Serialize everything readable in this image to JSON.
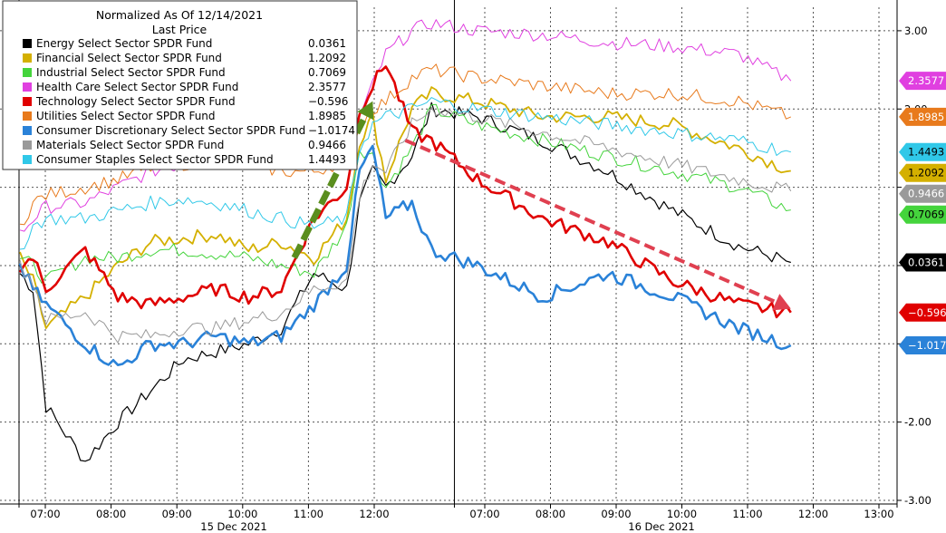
{
  "chart_data": {
    "type": "line",
    "title": "Normalized As Of 12/14/2021",
    "legend_header": "Last Price",
    "legend_placement": "top-left",
    "grid": true,
    "ylim": [
      -3.0,
      3.3
    ],
    "y_ticks": [
      {
        "value": 3.0,
        "label": "3.00"
      },
      {
        "value": 2.0,
        "label": "2.00"
      },
      {
        "value": 1.0,
        "label": ""
      },
      {
        "value": 0.0,
        "label": ""
      },
      {
        "value": -1.0,
        "label": ""
      },
      {
        "value": -2.0,
        "label": "-2.00"
      },
      {
        "value": -3.0,
        "label": "-3.00"
      }
    ],
    "x_ticks": [
      "07:00",
      "08:00",
      "09:00",
      "10:00",
      "11:00",
      "12:00",
      "07:00",
      "08:00",
      "09:00",
      "10:00",
      "11:00",
      "12:00",
      "13:00"
    ],
    "day_labels": [
      "15 Dec 2021",
      "16 Dec 2021"
    ],
    "x_points": [
      0,
      0.2,
      0.4,
      1,
      1.5,
      2,
      2.5,
      3,
      3.5,
      4,
      4.5,
      5,
      5.2,
      5.4,
      5.6,
      6.0,
      6.3,
      7,
      8,
      9,
      10,
      11,
      11.8
    ],
    "series": [
      {
        "name": "Energy Select Sector SPDR Fund",
        "last": "0.0361",
        "color": "#000000",
        "stroke": 1.2,
        "values": [
          -0.1,
          -0.3,
          -1.8,
          -2.5,
          -2.0,
          -1.6,
          -1.2,
          -1.1,
          -1.0,
          -0.8,
          -0.1,
          -0.3,
          0.8,
          1.2,
          1.0,
          1.4,
          2.0,
          1.9,
          1.6,
          1.2,
          0.7,
          0.25,
          0.04
        ]
      },
      {
        "name": "Financial Select Sector SPDR Fund",
        "last": "1.2092",
        "color": "#d4b000",
        "stroke": 1.8,
        "values": [
          0.1,
          -0.2,
          -0.8,
          -0.4,
          0.0,
          0.3,
          0.35,
          0.4,
          0.2,
          0.3,
          0.1,
          0.6,
          1.6,
          1.9,
          1.1,
          2.0,
          2.2,
          2.1,
          1.9,
          1.9,
          1.8,
          1.5,
          1.21
        ]
      },
      {
        "name": "Industrial Select Sector SPDR Fund",
        "last": "0.7069",
        "color": "#44d43c",
        "stroke": 1.0,
        "values": [
          0.1,
          0.0,
          -0.2,
          0.1,
          0.1,
          0.2,
          0.2,
          0.15,
          0.1,
          0.0,
          -0.1,
          0.5,
          1.5,
          1.4,
          1.0,
          1.5,
          2.0,
          1.8,
          1.6,
          1.4,
          1.2,
          1.0,
          0.71
        ]
      },
      {
        "name": "Health Care Select Sector SPDR Fund",
        "last": "2.3577",
        "color": "#e040e0",
        "stroke": 1.0,
        "values": [
          0.4,
          0.6,
          0.75,
          0.8,
          1.0,
          1.2,
          1.3,
          1.4,
          1.5,
          1.4,
          1.3,
          1.4,
          1.9,
          2.3,
          2.7,
          3.0,
          3.1,
          3.0,
          2.95,
          2.85,
          2.8,
          2.7,
          2.36
        ]
      },
      {
        "name": "Technology Select Sector SPDR Fund",
        "last": "−0.596",
        "color": "#e00000",
        "stroke": 2.6,
        "values": [
          0.0,
          0.1,
          -0.3,
          0.2,
          -0.4,
          -0.5,
          -0.4,
          -0.3,
          -0.4,
          -0.3,
          0.6,
          1.0,
          2.0,
          2.3,
          2.6,
          1.7,
          1.6,
          1.1,
          0.6,
          0.3,
          -0.2,
          -0.5,
          -0.6
        ]
      },
      {
        "name": "Utilities Select Sector SPDR Fund",
        "last": "1.8985",
        "color": "#e87a1c",
        "stroke": 1.0,
        "values": [
          0.5,
          0.8,
          0.9,
          1.0,
          1.1,
          1.25,
          1.3,
          1.35,
          1.3,
          1.2,
          1.2,
          1.35,
          1.8,
          2.0,
          2.1,
          2.4,
          2.5,
          2.4,
          2.3,
          2.2,
          2.2,
          2.1,
          1.9
        ]
      },
      {
        "name": "Consumer Discretionary Select Sector SPDR Fund",
        "last": "−1.0174",
        "color": "#2a82d8",
        "stroke": 2.6,
        "values": [
          0.0,
          -0.3,
          -0.5,
          -1.0,
          -1.3,
          -1.0,
          -1.0,
          -0.9,
          -1.0,
          -0.9,
          -0.5,
          0.0,
          1.2,
          1.5,
          0.6,
          0.8,
          0.2,
          0.0,
          -0.4,
          -0.1,
          -0.4,
          -0.8,
          -1.02
        ]
      },
      {
        "name": "Materials Select Sector SPDR Fund",
        "last": "0.9466",
        "color": "#9a9a9a",
        "stroke": 1.0,
        "values": [
          0.0,
          -0.2,
          -0.7,
          -0.6,
          -0.9,
          -0.9,
          -0.8,
          -0.8,
          -0.7,
          -0.6,
          -0.3,
          -0.2,
          0.9,
          1.3,
          1.2,
          1.8,
          2.0,
          1.9,
          1.7,
          1.5,
          1.3,
          1.1,
          0.95
        ]
      },
      {
        "name": "Consumer Staples Select Sector SPDR Fund",
        "last": "1.4493",
        "color": "#30c8e8",
        "stroke": 1.0,
        "values": [
          0.2,
          0.5,
          0.6,
          0.6,
          0.7,
          0.8,
          0.85,
          0.8,
          0.7,
          0.6,
          0.5,
          0.6,
          1.5,
          1.8,
          1.9,
          2.0,
          2.1,
          2.0,
          1.9,
          1.8,
          1.7,
          1.6,
          1.45
        ]
      }
    ],
    "annotations": [
      {
        "type": "arrow",
        "color": "#5a8e1e",
        "from": {
          "x": 4.2,
          "y": 0.1
        },
        "to": {
          "x": 5.4,
          "y": 2.1
        }
      },
      {
        "type": "arrow",
        "color": "#e04050",
        "from": {
          "x": 5.9,
          "y": 1.6
        },
        "to": {
          "x": 11.8,
          "y": -0.55
        }
      }
    ]
  }
}
